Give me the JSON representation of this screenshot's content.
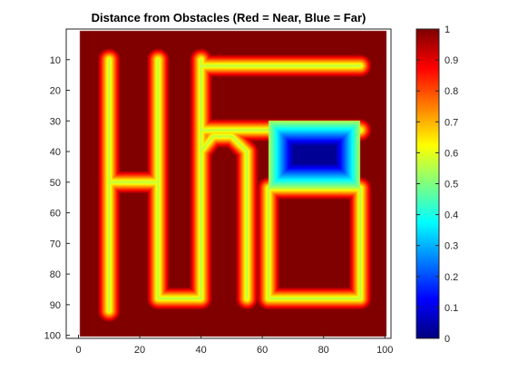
{
  "chart_data": {
    "type": "heatmap",
    "title": "Distance from Obstacles (Red = Near, Blue = Far)",
    "xlabel": "",
    "ylabel": "",
    "xlim": [
      0,
      100
    ],
    "ylim": [
      0,
      100
    ],
    "y_reversed": true,
    "x_ticks": [
      0,
      20,
      40,
      60,
      80,
      100
    ],
    "y_ticks": [
      10,
      20,
      30,
      40,
      50,
      60,
      70,
      80,
      90,
      100
    ],
    "colorbar": {
      "colormap": "jet",
      "range": [
        0,
        1
      ],
      "ticks": [
        0,
        0.1,
        0.2,
        0.3,
        0.4,
        0.5,
        0.6,
        0.7,
        0.8,
        0.9,
        1
      ]
    },
    "grid": false,
    "obstacle_value": 1,
    "free_space_paths": [
      {
        "name": "left-vertical",
        "type": "line",
        "points": [
          [
            10,
            10
          ],
          [
            10,
            92
          ]
        ]
      },
      {
        "name": "left-crossbar",
        "type": "line",
        "points": [
          [
            10,
            50
          ],
          [
            25,
            50
          ]
        ]
      },
      {
        "name": "second-vertical",
        "type": "line",
        "points": [
          [
            26,
            10
          ],
          [
            26,
            88
          ]
        ]
      },
      {
        "name": "bottom-link-left",
        "type": "line",
        "points": [
          [
            26,
            88
          ],
          [
            40,
            88
          ]
        ]
      },
      {
        "name": "center-vertical",
        "type": "line",
        "points": [
          [
            40,
            10
          ],
          [
            40,
            88
          ]
        ]
      },
      {
        "name": "top-right-bar",
        "type": "line",
        "points": [
          [
            40,
            12
          ],
          [
            92,
            12
          ]
        ]
      },
      {
        "name": "upper-right-bar",
        "type": "line",
        "points": [
          [
            40,
            33
          ],
          [
            92,
            33
          ]
        ]
      },
      {
        "name": "inner-arch",
        "type": "polyline",
        "points": [
          [
            55,
            88
          ],
          [
            55,
            40
          ],
          [
            50,
            35
          ],
          [
            44,
            35
          ],
          [
            40,
            40
          ]
        ]
      },
      {
        "name": "bottom-right-loop",
        "type": "rect",
        "points": [
          [
            62,
            52
          ],
          [
            92,
            88
          ]
        ]
      },
      {
        "name": "open-chamber",
        "type": "rect",
        "points": [
          [
            62,
            30
          ],
          [
            92,
            52
          ]
        ]
      }
    ]
  }
}
